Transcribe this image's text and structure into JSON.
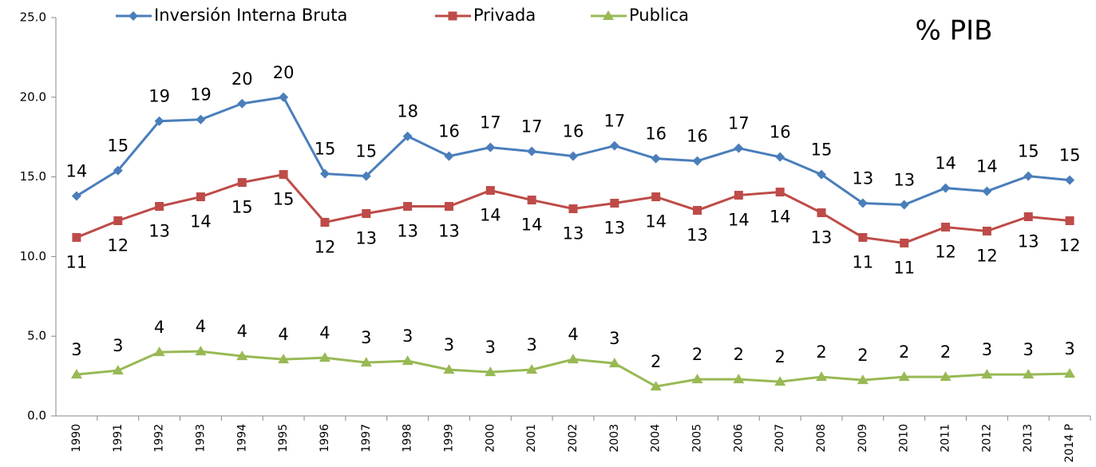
{
  "chart_data": {
    "type": "line",
    "annotation": "% PIB",
    "categories": [
      "1990",
      "1991",
      "1992",
      "1993",
      "1994",
      "1995",
      "1996",
      "1997",
      "1998",
      "1999",
      "2000",
      "2001",
      "2002",
      "2003",
      "2004",
      "2005",
      "2006",
      "2007",
      "2008",
      "2009",
      "2010",
      "2011",
      "2012",
      "2013",
      "2014 P"
    ],
    "series": [
      {
        "name": "Inversión Interna Bruta",
        "color": "#4a7ebb",
        "marker": "diamond",
        "label_position": "above",
        "values": [
          13.8,
          15.4,
          18.5,
          18.6,
          19.6,
          20.0,
          15.2,
          15.05,
          17.55,
          16.3,
          16.85,
          16.6,
          16.3,
          16.95,
          16.15,
          16.0,
          16.8,
          16.25,
          15.15,
          13.35,
          13.25,
          14.3,
          14.1,
          15.05,
          14.8
        ],
        "value_labels": [
          "14",
          "15",
          "19",
          "19",
          "20",
          "20",
          "15",
          "15",
          "18",
          "16",
          "17",
          "17",
          "16",
          "17",
          "16",
          "16",
          "17",
          "16",
          "15",
          "13",
          "13",
          "14",
          "14",
          "15",
          "15"
        ]
      },
      {
        "name": "Privada",
        "color": "#be4b48",
        "marker": "square",
        "label_position": "below",
        "values": [
          11.2,
          12.25,
          13.15,
          13.75,
          14.65,
          15.15,
          12.15,
          12.7,
          13.15,
          13.15,
          14.15,
          13.55,
          13.0,
          13.35,
          13.75,
          12.9,
          13.85,
          14.05,
          12.75,
          11.2,
          10.85,
          11.85,
          11.6,
          12.5,
          12.25
        ],
        "value_labels": [
          "11",
          "12",
          "13",
          "14",
          "15",
          "15",
          "12",
          "13",
          "13",
          "13",
          "14",
          "14",
          "13",
          "13",
          "14",
          "13",
          "14",
          "14",
          "13",
          "11",
          "11",
          "12",
          "12",
          "13",
          "12"
        ]
      },
      {
        "name": "Publica",
        "color": "#98b954",
        "marker": "triangle",
        "label_position": "above",
        "values": [
          2.6,
          2.85,
          4.0,
          4.05,
          3.75,
          3.55,
          3.65,
          3.35,
          3.45,
          2.9,
          2.75,
          2.9,
          3.55,
          3.3,
          1.85,
          2.3,
          2.3,
          2.15,
          2.45,
          2.25,
          2.45,
          2.45,
          2.6,
          2.6,
          2.65
        ],
        "value_labels": [
          "3",
          "3",
          "4",
          "4",
          "4",
          "4",
          "4",
          "3",
          "3",
          "3",
          "3",
          "3",
          "4",
          "3",
          "2",
          "2",
          "2",
          "2",
          "2",
          "2",
          "2",
          "2",
          "3",
          "3",
          "3"
        ]
      }
    ],
    "ylim": [
      0,
      25
    ],
    "yticks": [
      {
        "value": 0,
        "label": "0.0"
      },
      {
        "value": 5,
        "label": "5.0"
      },
      {
        "value": 10,
        "label": "10.0"
      },
      {
        "value": 15,
        "label": "15.0"
      },
      {
        "value": 20,
        "label": "20.0"
      },
      {
        "value": 25,
        "label": "25.0"
      }
    ],
    "legend": "top"
  }
}
